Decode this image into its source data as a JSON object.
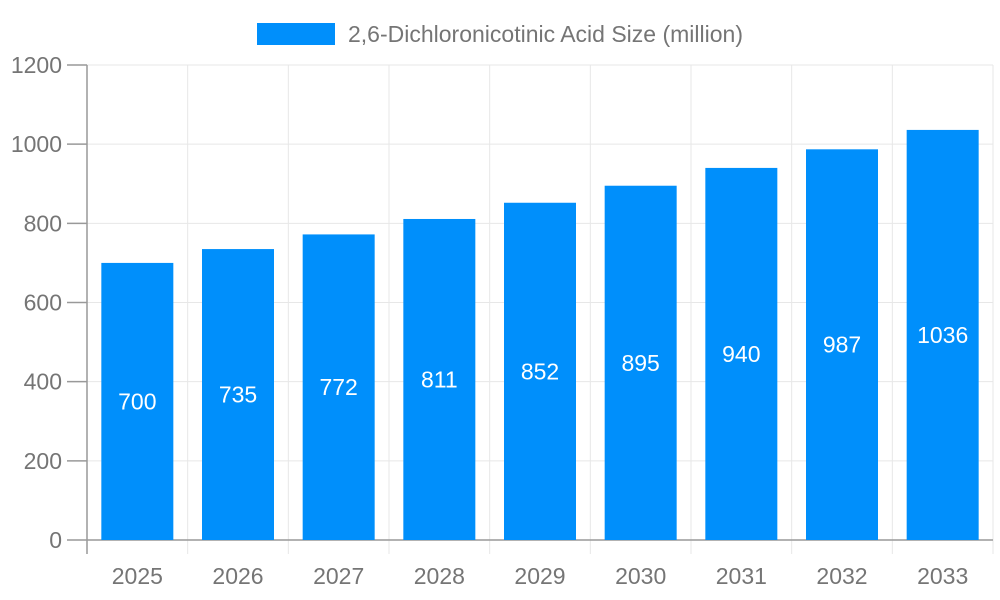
{
  "chart_data": {
    "type": "bar",
    "title": "",
    "legend_label": "2,6-Dichloronicotinic Acid Size (million)",
    "legend_position": "top",
    "categories": [
      "2025",
      "2026",
      "2027",
      "2028",
      "2029",
      "2030",
      "2031",
      "2032",
      "2033"
    ],
    "series": [
      {
        "name": "2,6-Dichloronicotinic Acid Size (million)",
        "values": [
          700,
          735,
          772,
          811,
          852,
          895,
          940,
          987,
          1036
        ]
      }
    ],
    "value_labels": [
      "700",
      "735",
      "772",
      "811",
      "852",
      "895",
      "940",
      "987",
      "1036"
    ],
    "xlabel": "",
    "ylabel": "",
    "ylim": [
      0,
      1200
    ],
    "yticks": [
      0,
      200,
      400,
      600,
      800,
      1000,
      1200
    ],
    "grid": true,
    "colors": {
      "bar": "#008FFB",
      "value_label": "#ffffff",
      "axis_text": "#757575",
      "grid_line": "#e7e7e7",
      "axis_line": "#999999"
    }
  }
}
